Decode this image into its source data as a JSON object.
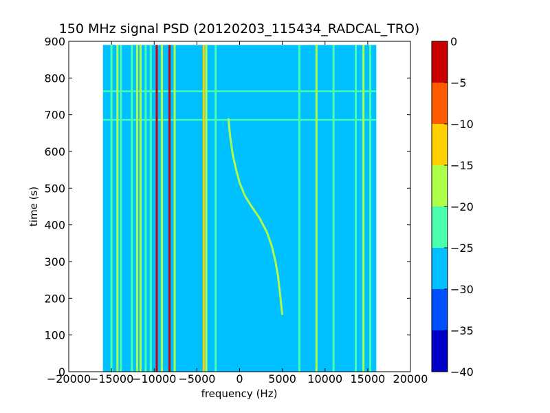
{
  "chart_data": {
    "type": "heatmap",
    "title": "150 MHz signal PSD (20120203_115434_RADCAL_TRO)",
    "xlabel": "frequency (Hz)",
    "ylabel": "time (s)",
    "xlim": [
      -20000,
      20000
    ],
    "ylim": [
      0,
      900
    ],
    "xticks": [
      -20000,
      -15000,
      -10000,
      -5000,
      0,
      5000,
      10000,
      15000,
      20000
    ],
    "xtick_labels": [
      "−20000",
      "−15000",
      "−10000",
      "−5000",
      "0",
      "5000",
      "10000",
      "15000",
      "20000"
    ],
    "yticks": [
      0,
      100,
      200,
      300,
      400,
      500,
      600,
      700,
      800,
      900
    ],
    "ytick_labels": [
      "0",
      "100",
      "200",
      "300",
      "400",
      "500",
      "600",
      "700",
      "800",
      "900"
    ],
    "data_extent": {
      "x": [
        -16000,
        16000
      ],
      "y": [
        0,
        890
      ]
    },
    "background_level": -27.5,
    "colorbar": {
      "levels": [
        -40,
        -35,
        -30,
        -25,
        -20,
        -15,
        -10,
        -5,
        0
      ],
      "tick_labels": [
        "0",
        "−5",
        "−10",
        "−15",
        "−20",
        "−25",
        "−30",
        "−35",
        "−40"
      ],
      "colors": [
        "#0000c8",
        "#0050ff",
        "#00c0ff",
        "#49ffad",
        "#adff49",
        "#ffd000",
        "#ff5a00",
        "#c80000"
      ]
    },
    "spectral_lines": [
      {
        "f": -15000,
        "level": -22.5
      },
      {
        "f": -14300,
        "level": -17.5
      },
      {
        "f": -13900,
        "level": -22.5
      },
      {
        "f": -12600,
        "level": -22.5
      },
      {
        "f": -12000,
        "level": -17.5
      },
      {
        "f": -11600,
        "level": -17.5
      },
      {
        "f": -11000,
        "level": -22.5
      },
      {
        "f": -10400,
        "level": -22.5
      },
      {
        "f": -9700,
        "level": -2.5
      },
      {
        "f": -9100,
        "level": -17.5
      },
      {
        "f": -8200,
        "level": -2.5
      },
      {
        "f": -7600,
        "level": -17.5
      },
      {
        "f": -4200,
        "level": -12.5
      },
      {
        "f": -3900,
        "level": -17.5
      },
      {
        "f": -2800,
        "level": -22.5
      },
      {
        "f": 7000,
        "level": -22.5
      },
      {
        "f": 9000,
        "level": -17.5
      },
      {
        "f": 11000,
        "level": -22.5
      },
      {
        "f": 13600,
        "level": -22.5
      },
      {
        "f": 14500,
        "level": -17.5
      },
      {
        "f": 15300,
        "level": -22.5
      }
    ],
    "horizontal_bands": [
      {
        "t": 686,
        "level": -22.5
      },
      {
        "t": 764,
        "level": -22.5
      }
    ],
    "sweep": {
      "level": -17.5,
      "points": [
        [
          -1300,
          690
        ],
        [
          -1100,
          640
        ],
        [
          -800,
          590
        ],
        [
          -400,
          550
        ],
        [
          0,
          515
        ],
        [
          600,
          480
        ],
        [
          1400,
          450
        ],
        [
          2300,
          420
        ],
        [
          3200,
          380
        ],
        [
          3800,
          340
        ],
        [
          4200,
          300
        ],
        [
          4500,
          260
        ],
        [
          4700,
          220
        ],
        [
          5000,
          155
        ]
      ]
    }
  }
}
